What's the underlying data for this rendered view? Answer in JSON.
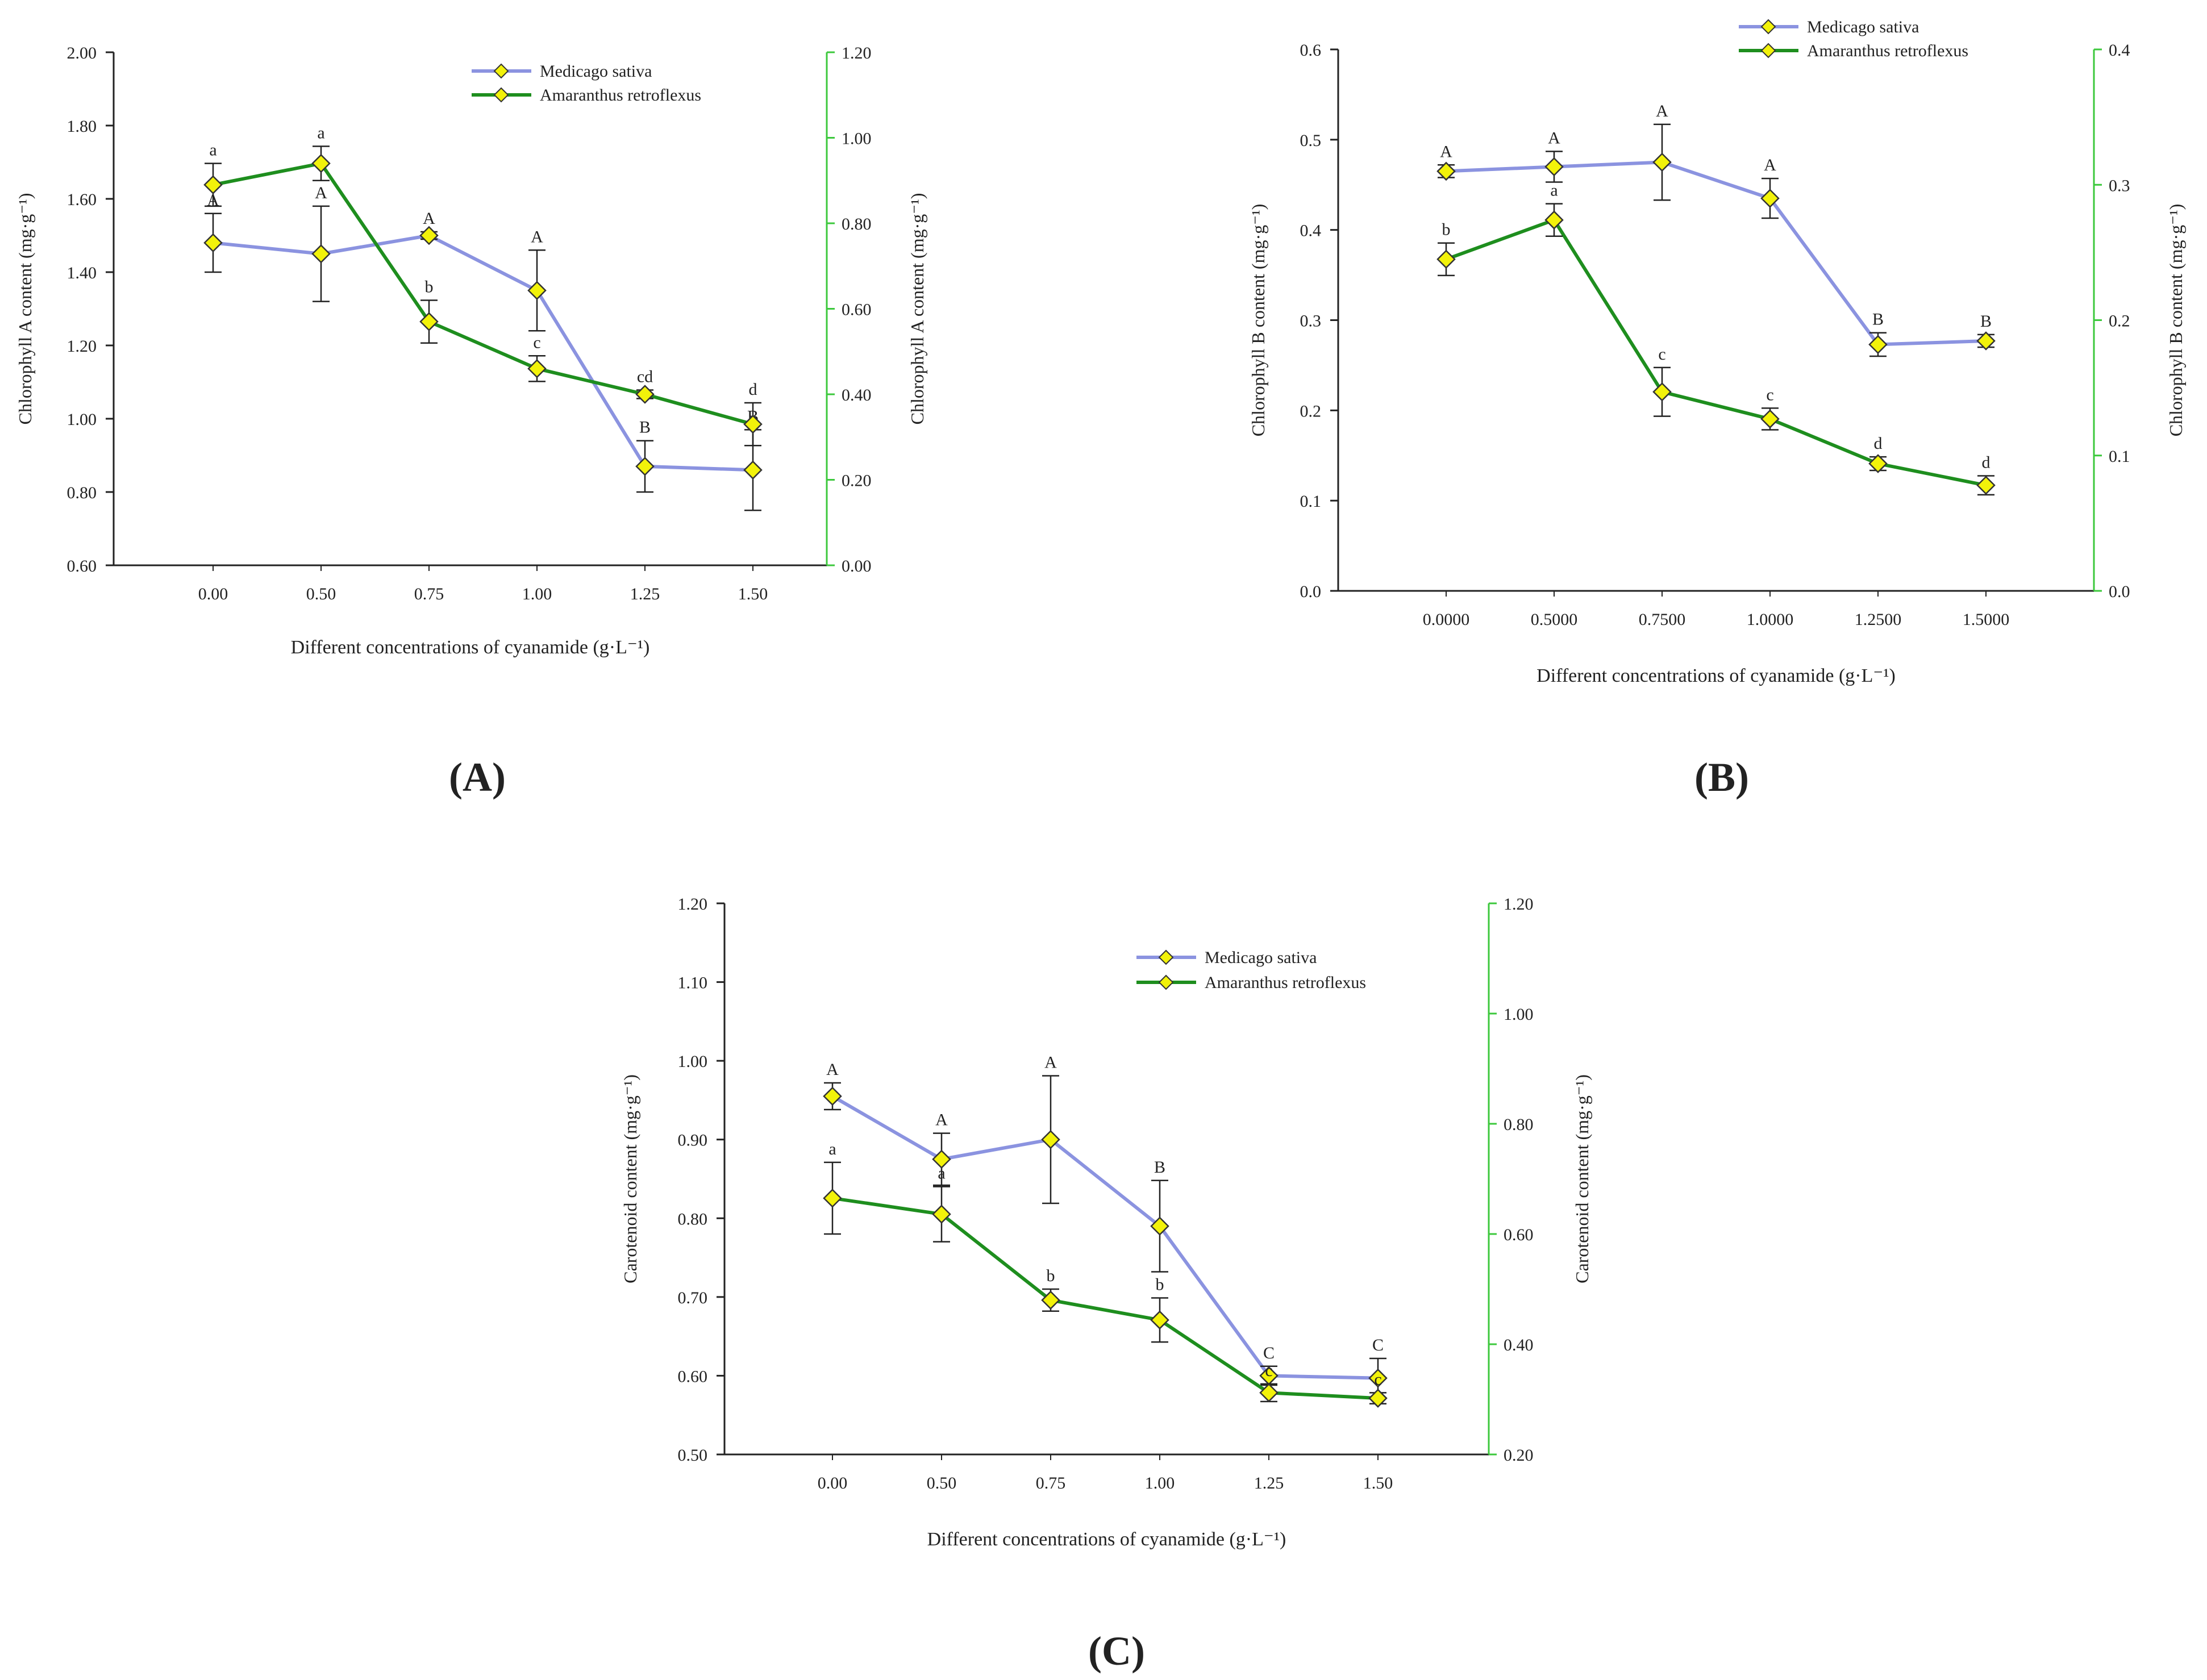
{
  "figure": {
    "panel_labels": [
      "(A)",
      "(B)",
      "(C)"
    ],
    "colors": {
      "medicago": "#8b93e0",
      "amaranthus": "#1e8e1e",
      "marker_fill": "#f2f20a",
      "marker_stroke": "#333333",
      "right_axis": "#3cc83c",
      "axis": "#222222"
    }
  },
  "chart_data": [
    {
      "id": "A",
      "type": "line",
      "label": "(A)",
      "xlabel": "Different concentrations of cyanamide (g·L⁻¹)",
      "ylabel_left": "Chlorophyll A content (mg·g⁻¹)",
      "ylabel_right": "Chlorophyll A content (mg·g⁻¹)",
      "categories": [
        "0.00",
        "0.50",
        "0.75",
        "1.00",
        "1.25",
        "1.50"
      ],
      "ylim_left": [
        0.6,
        2.0
      ],
      "yticks_left": [
        "0.60",
        "0.80",
        "1.00",
        "1.20",
        "1.40",
        "1.60",
        "1.80",
        "2.00"
      ],
      "ylim_right": [
        0.0,
        1.2
      ],
      "yticks_right": [
        "0.00",
        "0.20",
        "0.40",
        "0.60",
        "0.80",
        "1.00",
        "1.20"
      ],
      "legend_position": "top-right",
      "series": [
        {
          "name": "Medicago sativa",
          "axis": "left",
          "values": [
            1.48,
            1.45,
            1.5,
            1.35,
            0.87,
            0.86
          ],
          "errors": [
            0.08,
            0.13,
            0.01,
            0.11,
            0.07,
            0.11
          ],
          "letters": [
            "A",
            "A",
            "A",
            "A",
            "B",
            "B"
          ]
        },
        {
          "name": "Amaranthus retroflexus",
          "axis": "right",
          "values": [
            0.89,
            0.94,
            0.57,
            0.46,
            0.4,
            0.33
          ],
          "errors": [
            0.05,
            0.04,
            0.05,
            0.03,
            0.01,
            0.05
          ],
          "letters": [
            "a",
            "a",
            "b",
            "c",
            "cd",
            "d"
          ]
        }
      ]
    },
    {
      "id": "B",
      "type": "line",
      "label": "(B)",
      "xlabel": "Different concentrations of cyanamide (g·L⁻¹)",
      "ylabel_left": "Chlorophyll B content (mg·g⁻¹)",
      "ylabel_right": "Chlorophyll B content (mg·g⁻¹)",
      "categories": [
        "0.0000",
        "0.5000",
        "0.7500",
        "1.0000",
        "1.2500",
        "1.5000"
      ],
      "ylim_left": [
        0.0,
        0.6
      ],
      "yticks_left": [
        "0.0",
        "0.1",
        "0.2",
        "0.3",
        "0.4",
        "0.5",
        "0.6"
      ],
      "ylim_right": [
        0.0,
        0.4
      ],
      "yticks_right": [
        "0.0",
        "0.1",
        "0.2",
        "0.3",
        "0.4"
      ],
      "legend_position": "top-right",
      "series": [
        {
          "name": "Medicago sativa",
          "axis": "left",
          "values": [
            0.465,
            0.47,
            0.475,
            0.435,
            0.273,
            0.277
          ],
          "errors": [
            0.007,
            0.017,
            0.042,
            0.022,
            0.013,
            0.007
          ],
          "letters": [
            "A",
            "A",
            "A",
            "A",
            "B",
            "B"
          ]
        },
        {
          "name": "Amaranthus retroflexus",
          "axis": "right",
          "values": [
            0.245,
            0.274,
            0.147,
            0.127,
            0.094,
            0.078
          ],
          "errors": [
            0.012,
            0.012,
            0.018,
            0.008,
            0.005,
            0.007
          ],
          "letters": [
            "b",
            "a",
            "c",
            "c",
            "d",
            "d"
          ]
        }
      ]
    },
    {
      "id": "C",
      "type": "line",
      "label": "(C)",
      "xlabel": "Different concentrations of cyanamide (g·L⁻¹)",
      "ylabel_left": "Carotenoid content (mg·g⁻¹)",
      "ylabel_right": "Carotenoid content (mg·g⁻¹)",
      "categories": [
        "0.00",
        "0.50",
        "0.75",
        "1.00",
        "1.25",
        "1.50"
      ],
      "ylim_left": [
        0.5,
        1.2
      ],
      "yticks_left": [
        "0.50",
        "0.60",
        "0.70",
        "0.80",
        "0.90",
        "1.00",
        "1.10",
        "1.20"
      ],
      "ylim_right": [
        0.2,
        1.2
      ],
      "yticks_right": [
        "0.20",
        "0.40",
        "0.60",
        "0.80",
        "1.00",
        "1.20"
      ],
      "legend_position": "top-right",
      "series": [
        {
          "name": "Medicago sativa",
          "axis": "left",
          "values": [
            0.955,
            0.875,
            0.9,
            0.79,
            0.6,
            0.597
          ],
          "errors": [
            0.017,
            0.033,
            0.081,
            0.058,
            0.012,
            0.025
          ],
          "letters": [
            "A",
            "A",
            "A",
            "B",
            "C",
            "C"
          ]
        },
        {
          "name": "Amaranthus retroflexus",
          "axis": "right",
          "values": [
            0.665,
            0.636,
            0.48,
            0.444,
            0.312,
            0.302
          ],
          "errors": [
            0.065,
            0.05,
            0.02,
            0.04,
            0.016,
            0.01
          ],
          "letters": [
            "a",
            "a",
            "b",
            "b",
            "c",
            "c"
          ]
        }
      ]
    }
  ]
}
